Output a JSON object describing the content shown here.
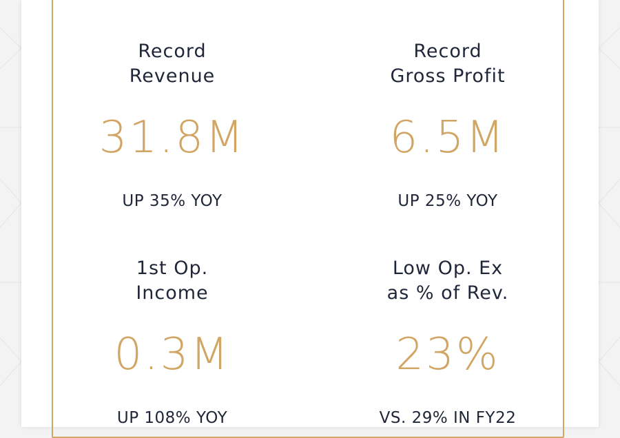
{
  "metrics": [
    {
      "label": "Record\nRevenue",
      "value": "31.8M",
      "note": "UP 35% YOY"
    },
    {
      "label": "Record\nGross Profit",
      "value": "6.5M",
      "note": "UP 25% YOY"
    },
    {
      "label": "1st Op.\nIncome",
      "value": "0.3M",
      "note": "UP 108% YOY"
    },
    {
      "label": "Low Op. Ex\nas % of Rev.",
      "value": "23%",
      "note": "VS. 29% IN FY22"
    }
  ],
  "colors": {
    "accent": "#d1a563",
    "text": "#1e2638",
    "background": "#f3f3f4",
    "card": "#ffffff"
  }
}
